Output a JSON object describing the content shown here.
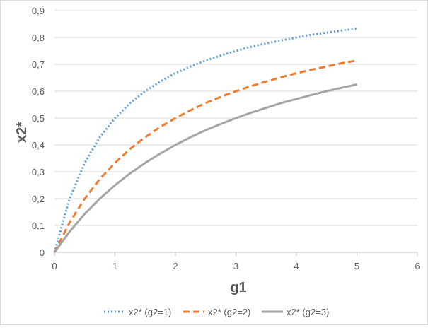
{
  "chart_data": {
    "type": "line",
    "title": "",
    "xlabel": "g1",
    "ylabel": "x2*",
    "xlim": [
      0,
      6
    ],
    "ylim": [
      0,
      0.9
    ],
    "xticks": [
      "0",
      "1",
      "2",
      "3",
      "4",
      "5",
      "6"
    ],
    "yticks": [
      "0",
      "0,1",
      "0,2",
      "0,3",
      "0,4",
      "0,5",
      "0,6",
      "0,7",
      "0,8",
      "0,9"
    ],
    "grid": "horizontal",
    "legend_position": "bottom",
    "x": [
      0,
      0.25,
      0.5,
      0.75,
      1,
      1.25,
      1.5,
      1.75,
      2,
      2.25,
      2.5,
      2.75,
      3,
      3.25,
      3.5,
      3.75,
      4,
      4.25,
      4.5,
      4.75,
      5
    ],
    "series": [
      {
        "name": "x2* (g2=1)",
        "color": "#5b9bd5",
        "style": "dotted",
        "values": [
          0,
          0.2,
          0.333,
          0.429,
          0.5,
          0.556,
          0.6,
          0.636,
          0.667,
          0.692,
          0.714,
          0.733,
          0.75,
          0.765,
          0.778,
          0.789,
          0.8,
          0.81,
          0.818,
          0.826,
          0.833
        ]
      },
      {
        "name": "x2* (g2=2)",
        "color": "#ed7d31",
        "style": "dashed",
        "values": [
          0,
          0.111,
          0.2,
          0.273,
          0.333,
          0.385,
          0.429,
          0.467,
          0.5,
          0.529,
          0.556,
          0.579,
          0.6,
          0.619,
          0.636,
          0.652,
          0.667,
          0.68,
          0.692,
          0.704,
          0.714
        ]
      },
      {
        "name": "x2* (g2=3)",
        "color": "#a5a5a5",
        "style": "solid",
        "values": [
          0,
          0.077,
          0.143,
          0.2,
          0.25,
          0.294,
          0.333,
          0.368,
          0.4,
          0.429,
          0.455,
          0.478,
          0.5,
          0.52,
          0.538,
          0.556,
          0.571,
          0.586,
          0.6,
          0.613,
          0.625
        ]
      }
    ]
  }
}
